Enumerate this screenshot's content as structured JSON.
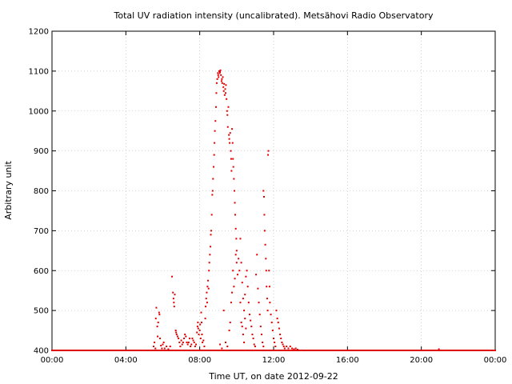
{
  "chart_data": {
    "type": "scatter",
    "title": "Total UV radiation intensity (uncalibrated). Metsähovi Radio Observatory",
    "xlabel": "Time UT, on date 2012-09-22",
    "ylabel": "Arbitrary unit",
    "xlim": [
      0,
      24
    ],
    "ylim": [
      400,
      1200
    ],
    "x_ticks": [
      {
        "value": 0,
        "label": "00:00"
      },
      {
        "value": 4,
        "label": "04:00"
      },
      {
        "value": 8,
        "label": "08:00"
      },
      {
        "value": 12,
        "label": "12:00"
      },
      {
        "value": 16,
        "label": "16:00"
      },
      {
        "value": 20,
        "label": "20:00"
      },
      {
        "value": 24,
        "label": "00:00"
      }
    ],
    "y_ticks": [
      {
        "value": 400,
        "label": "400"
      },
      {
        "value": 500,
        "label": "500"
      },
      {
        "value": 600,
        "label": "600"
      },
      {
        "value": 700,
        "label": "700"
      },
      {
        "value": 800,
        "label": "800"
      },
      {
        "value": 900,
        "label": "900"
      },
      {
        "value": 1000,
        "label": "1000"
      },
      {
        "value": 1100,
        "label": "1100"
      },
      {
        "value": 1200,
        "label": "1200"
      }
    ],
    "grid": true,
    "marker_color": "#e00000",
    "series": [
      {
        "points": [
          [
            5.5,
            410
          ],
          [
            5.55,
            420
          ],
          [
            5.6,
            405
          ],
          [
            5.62,
            480
          ],
          [
            5.65,
            507
          ],
          [
            5.7,
            460
          ],
          [
            5.72,
            435
          ],
          [
            5.75,
            470
          ],
          [
            5.8,
            495
          ],
          [
            5.82,
            490
          ],
          [
            5.85,
            430
          ],
          [
            5.9,
            412
          ],
          [
            5.95,
            405
          ],
          [
            6.0,
            415
          ],
          [
            6.05,
            420
          ],
          [
            6.1,
            405
          ],
          [
            6.2,
            410
          ],
          [
            6.3,
            403
          ],
          [
            6.4,
            410
          ],
          [
            6.5,
            585
          ],
          [
            6.55,
            545
          ],
          [
            6.58,
            530
          ],
          [
            6.6,
            520
          ],
          [
            6.62,
            510
          ],
          [
            6.65,
            540
          ],
          [
            6.7,
            450
          ],
          [
            6.72,
            445
          ],
          [
            6.75,
            440
          ],
          [
            6.8,
            435
          ],
          [
            6.85,
            430
          ],
          [
            6.9,
            420
          ],
          [
            6.95,
            410
          ],
          [
            7.0,
            425
          ],
          [
            7.05,
            415
          ],
          [
            7.1,
            420
          ],
          [
            7.15,
            430
          ],
          [
            7.2,
            440
          ],
          [
            7.25,
            435
          ],
          [
            7.3,
            420
          ],
          [
            7.35,
            415
          ],
          [
            7.4,
            420
          ],
          [
            7.45,
            430
          ],
          [
            7.5,
            410
          ],
          [
            7.55,
            415
          ],
          [
            7.6,
            430
          ],
          [
            7.65,
            425
          ],
          [
            7.7,
            420
          ],
          [
            7.75,
            410
          ],
          [
            7.8,
            415
          ],
          [
            7.85,
            445
          ],
          [
            7.88,
            460
          ],
          [
            7.9,
            470
          ],
          [
            7.92,
            455
          ],
          [
            7.95,
            440
          ],
          [
            8.0,
            450
          ],
          [
            8.02,
            465
          ],
          [
            8.05,
            430
          ],
          [
            8.08,
            495
          ],
          [
            8.1,
            470
          ],
          [
            8.12,
            440
          ],
          [
            8.15,
            420
          ],
          [
            8.2,
            425
          ],
          [
            8.25,
            410
          ],
          [
            8.3,
            480
          ],
          [
            8.32,
            510
          ],
          [
            8.35,
            530
          ],
          [
            8.38,
            545
          ],
          [
            8.4,
            520
          ],
          [
            8.42,
            560
          ],
          [
            8.45,
            575
          ],
          [
            8.48,
            555
          ],
          [
            8.5,
            600
          ],
          [
            8.52,
            620
          ],
          [
            8.55,
            640
          ],
          [
            8.58,
            660
          ],
          [
            8.6,
            690
          ],
          [
            8.62,
            700
          ],
          [
            8.65,
            740
          ],
          [
            8.68,
            790
          ],
          [
            8.7,
            800
          ],
          [
            8.72,
            830
          ],
          [
            8.75,
            860
          ],
          [
            8.78,
            890
          ],
          [
            8.8,
            920
          ],
          [
            8.82,
            950
          ],
          [
            8.85,
            975
          ],
          [
            8.88,
            1010
          ],
          [
            8.9,
            1045
          ],
          [
            8.92,
            1070
          ],
          [
            8.95,
            1080
          ],
          [
            8.98,
            1095
          ],
          [
            9.0,
            1090
          ],
          [
            9.02,
            1085
          ],
          [
            9.05,
            1100
          ],
          [
            9.08,
            1095
          ],
          [
            9.1,
            1098
          ],
          [
            9.12,
            1102
          ],
          [
            9.15,
            1090
          ],
          [
            9.18,
            1075
          ],
          [
            9.2,
            1080
          ],
          [
            9.22,
            1070
          ],
          [
            9.25,
            1085
          ],
          [
            9.28,
            1060
          ],
          [
            9.3,
            1050
          ],
          [
            9.32,
            1068
          ],
          [
            9.35,
            1040
          ],
          [
            9.38,
            1055
          ],
          [
            9.4,
            1045
          ],
          [
            9.42,
            1065
          ],
          [
            9.45,
            1030
          ],
          [
            9.48,
            1000
          ],
          [
            9.5,
            990
          ],
          [
            9.52,
            960
          ],
          [
            9.55,
            1010
          ],
          [
            9.58,
            940
          ],
          [
            9.6,
            930
          ],
          [
            9.62,
            920
          ],
          [
            9.65,
            945
          ],
          [
            9.68,
            900
          ],
          [
            9.7,
            880
          ],
          [
            9.72,
            850
          ],
          [
            9.75,
            955
          ],
          [
            9.78,
            920
          ],
          [
            9.8,
            880
          ],
          [
            9.82,
            860
          ],
          [
            9.85,
            830
          ],
          [
            9.88,
            800
          ],
          [
            9.9,
            770
          ],
          [
            9.92,
            740
          ],
          [
            9.95,
            705
          ],
          [
            9.98,
            680
          ],
          [
            10.0,
            650
          ],
          [
            9.1,
            415
          ],
          [
            9.2,
            405
          ],
          [
            9.3,
            500
          ],
          [
            9.4,
            420
          ],
          [
            9.5,
            410
          ],
          [
            9.6,
            450
          ],
          [
            9.65,
            470
          ],
          [
            9.7,
            520
          ],
          [
            9.75,
            545
          ],
          [
            9.8,
            600
          ],
          [
            9.85,
            560
          ],
          [
            9.9,
            580
          ],
          [
            9.95,
            640
          ],
          [
            10.0,
            620
          ],
          [
            10.05,
            590
          ],
          [
            10.1,
            630
          ],
          [
            10.15,
            600
          ],
          [
            10.2,
            520
          ],
          [
            10.25,
            470
          ],
          [
            10.3,
            460
          ],
          [
            10.35,
            440
          ],
          [
            10.4,
            420
          ],
          [
            10.45,
            480
          ],
          [
            10.5,
            455
          ],
          [
            10.2,
            680
          ],
          [
            10.25,
            620
          ],
          [
            10.3,
            570
          ],
          [
            10.35,
            530
          ],
          [
            10.4,
            500
          ],
          [
            10.45,
            540
          ],
          [
            10.5,
            585
          ],
          [
            10.55,
            600
          ],
          [
            10.6,
            560
          ],
          [
            10.65,
            520
          ],
          [
            10.7,
            490
          ],
          [
            10.75,
            475
          ],
          [
            10.8,
            460
          ],
          [
            10.85,
            440
          ],
          [
            10.9,
            430
          ],
          [
            10.95,
            415
          ],
          [
            11.0,
            410
          ],
          [
            11.05,
            590
          ],
          [
            11.1,
            640
          ],
          [
            11.15,
            555
          ],
          [
            11.2,
            520
          ],
          [
            11.25,
            490
          ],
          [
            11.3,
            460
          ],
          [
            11.35,
            440
          ],
          [
            11.4,
            420
          ],
          [
            11.45,
            410
          ],
          [
            11.45,
            800
          ],
          [
            11.48,
            785
          ],
          [
            11.5,
            740
          ],
          [
            11.52,
            700
          ],
          [
            11.55,
            665
          ],
          [
            11.58,
            630
          ],
          [
            11.6,
            600
          ],
          [
            11.62,
            560
          ],
          [
            11.65,
            530
          ],
          [
            11.68,
            500
          ],
          [
            11.7,
            890
          ],
          [
            11.72,
            900
          ],
          [
            11.75,
            600
          ],
          [
            11.78,
            560
          ],
          [
            11.8,
            520
          ],
          [
            11.85,
            490
          ],
          [
            11.9,
            470
          ],
          [
            11.95,
            450
          ],
          [
            12.0,
            430
          ],
          [
            12.05,
            420
          ],
          [
            12.1,
            410
          ],
          [
            12.15,
            500
          ],
          [
            12.2,
            480
          ],
          [
            12.25,
            470
          ],
          [
            12.3,
            455
          ],
          [
            12.35,
            440
          ],
          [
            12.4,
            430
          ],
          [
            12.45,
            420
          ],
          [
            12.5,
            415
          ],
          [
            12.55,
            410
          ],
          [
            12.6,
            405
          ],
          [
            12.7,
            410
          ],
          [
            12.8,
            405
          ],
          [
            12.9,
            410
          ],
          [
            13.0,
            405
          ],
          [
            13.1,
            403
          ],
          [
            13.2,
            405
          ],
          [
            13.3,
            402
          ],
          [
            20.95,
            403
          ]
        ]
      }
    ]
  }
}
